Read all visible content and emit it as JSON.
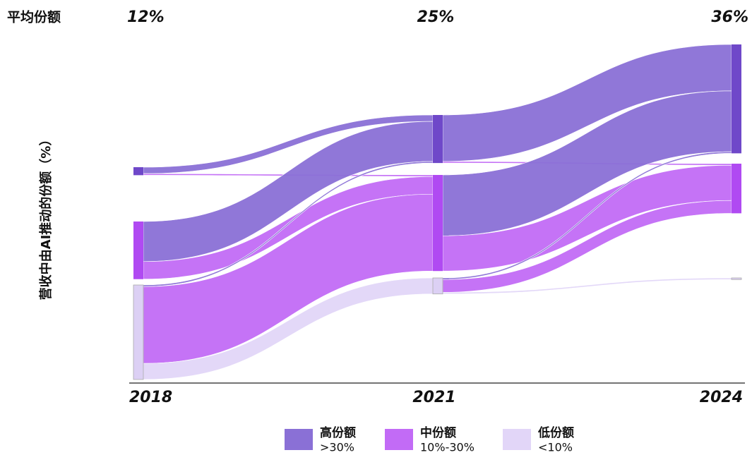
{
  "chart_data": {
    "type": "sankey",
    "average_share": {
      "label": "平均份额",
      "values": [
        12,
        25,
        36
      ],
      "value_labels": [
        "12%",
        "25%",
        "36%"
      ]
    },
    "y_label": "营收中由AI推动的份额（%）",
    "categories": [
      "2018",
      "2021",
      "2024"
    ],
    "series": [
      {
        "name": "高份额",
        "sub_label": ">30%",
        "color": "#8a70d6",
        "node_color": "#6f48c9",
        "values": [
          5,
          30,
          68
        ]
      },
      {
        "name": "中份额",
        "sub_label": "10%-30%",
        "color": "#c26bf6",
        "node_color": "#b04af2",
        "values": [
          36,
          60,
          31
        ]
      },
      {
        "name": "低份额",
        "sub_label": "<10%",
        "color": "#e2d6f8",
        "node_color": "#dcd0f4",
        "values": [
          59,
          10,
          1
        ]
      }
    ],
    "links": [
      {
        "stage": "2018",
        "source": "高份额",
        "target": "高份额",
        "value": 4
      },
      {
        "stage": "2018",
        "source": "高份额",
        "target": "中份额",
        "value": 1
      },
      {
        "stage": "2018",
        "source": "中份额",
        "target": "高份额",
        "value": 25
      },
      {
        "stage": "2018",
        "source": "中份额",
        "target": "中份额",
        "value": 11
      },
      {
        "stage": "2018",
        "source": "低份额",
        "target": "高份额",
        "value": 1
      },
      {
        "stage": "2018",
        "source": "低份额",
        "target": "中份额",
        "value": 48
      },
      {
        "stage": "2018",
        "source": "低份额",
        "target": "低份额",
        "value": 10
      },
      {
        "stage": "2021",
        "source": "高份额",
        "target": "高份额",
        "value": 29
      },
      {
        "stage": "2021",
        "source": "高份额",
        "target": "中份额",
        "value": 1
      },
      {
        "stage": "2021",
        "source": "中份额",
        "target": "高份额",
        "value": 38
      },
      {
        "stage": "2021",
        "source": "中份额",
        "target": "中份额",
        "value": 22
      },
      {
        "stage": "2021",
        "source": "低份额",
        "target": "高份额",
        "value": 1
      },
      {
        "stage": "2021",
        "source": "低份额",
        "target": "中份额",
        "value": 8
      },
      {
        "stage": "2021",
        "source": "低份额",
        "target": "低份额",
        "value": 1
      }
    ]
  }
}
